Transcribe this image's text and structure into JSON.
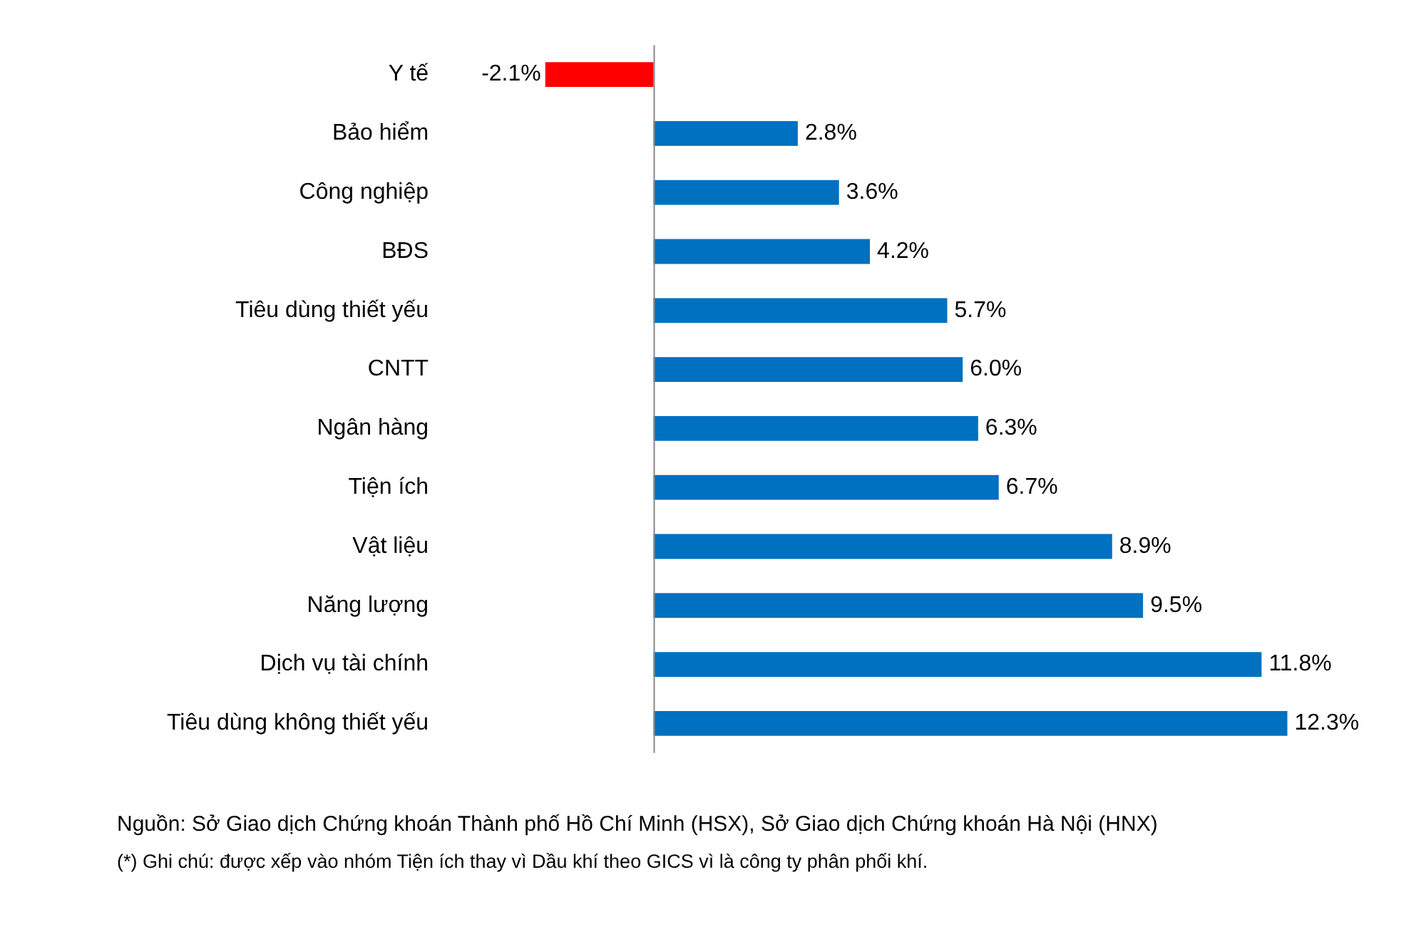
{
  "chart_data": {
    "type": "bar",
    "orientation": "horizontal",
    "categories": [
      "Y tế",
      "Bảo hiểm",
      "Công nghiệp",
      "BĐS",
      "Tiêu dùng thiết yếu",
      "CNTT",
      "Ngân hàng",
      "Tiện ích",
      "Vật liệu",
      "Năng lượng",
      "Dịch vụ tài chính",
      "Tiêu dùng không thiết yếu"
    ],
    "values": [
      -2.1,
      2.8,
      3.6,
      4.2,
      5.7,
      6.0,
      6.3,
      6.7,
      8.9,
      9.5,
      11.8,
      12.3
    ],
    "value_labels": [
      "-2.1%",
      "2.8%",
      "3.6%",
      "4.2%",
      "5.7%",
      "6.0%",
      "6.3%",
      "6.7%",
      "8.9%",
      "9.5%",
      "11.8%",
      "12.3%"
    ],
    "colors": [
      "#ff0000",
      "#0070c0",
      "#0070c0",
      "#0070c0",
      "#0070c0",
      "#0070c0",
      "#0070c0",
      "#0070c0",
      "#0070c0",
      "#0070c0",
      "#0070c0",
      "#0070c0"
    ],
    "legend": false,
    "annotations": [
      "Nguồn: Sở Giao dịch Chứng khoán Thành phố Hồ Chí Minh (HSX), Sở Giao dịch Chứng khoán Hà Nội (HNX)",
      "(*) Ghi chú: được xếp vào nhóm Tiện ích thay vì Dầu khí theo GICS vì là công ty phân phối khí."
    ]
  }
}
